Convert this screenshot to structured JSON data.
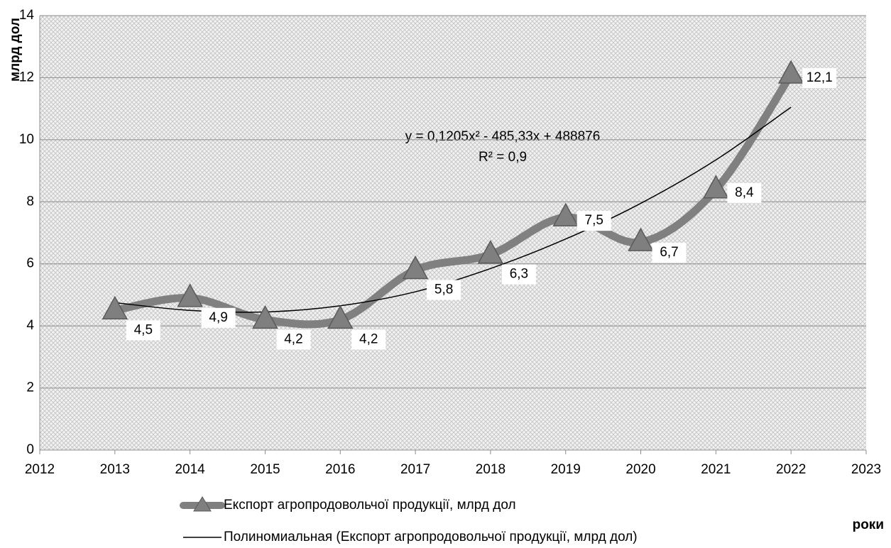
{
  "chart_data": {
    "type": "line",
    "y_axis_label": "млрд дол",
    "x_axis_label": "роки",
    "x": [
      2013,
      2014,
      2015,
      2016,
      2017,
      2018,
      2019,
      2020,
      2021,
      2022
    ],
    "series": [
      {
        "name": "Експорт агропродовольчої продукції, млрд дол",
        "color": "#808080",
        "values": [
          4.5,
          4.9,
          4.2,
          4.2,
          5.8,
          6.3,
          7.5,
          6.7,
          8.4,
          12.1
        ],
        "value_labels": [
          "4,5",
          "4,9",
          "4,2",
          "4,2",
          "5,8",
          "6,3",
          "7,5",
          "6,7",
          "8,4",
          "12,1"
        ]
      },
      {
        "name": "Полиномиальная (Експорт агропродовольчої продукції, млрд дол)",
        "color": "#000000",
        "values": [
          4.75,
          4.5,
          4.45,
          4.65,
          5.1,
          5.85,
          6.8,
          7.95,
          9.35,
          11.05
        ]
      }
    ],
    "annotations": [
      "y = 0,1205x² - 485,33x + 488876",
      "R² = 0,9"
    ],
    "xlim": [
      2012,
      2023
    ],
    "xticks": [
      2012,
      2013,
      2014,
      2015,
      2016,
      2017,
      2018,
      2019,
      2020,
      2021,
      2022,
      2023
    ],
    "ylim": [
      0,
      14
    ],
    "yticks": [
      0,
      2,
      4,
      6,
      8,
      10,
      12,
      14
    ],
    "grid": true,
    "legend": "bottom"
  }
}
